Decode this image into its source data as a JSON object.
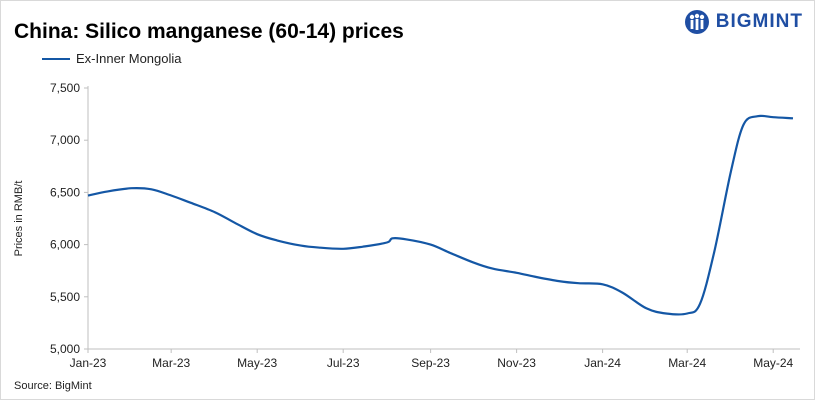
{
  "logo": {
    "text": "BIGMINT",
    "color": "#1f4ea3"
  },
  "source": "Source: BigMint",
  "chart_data": {
    "type": "line",
    "title": "China: Silico manganese (60-14) prices",
    "ylabel": "Prices in RMB/t",
    "xlabel": "",
    "ylim": [
      5000,
      7500
    ],
    "yticks": [
      5000,
      5500,
      6000,
      6500,
      7000,
      7500
    ],
    "ytick_labels": [
      "5,000",
      "5,500",
      "6,000",
      "6,500",
      "7,000",
      "7,500"
    ],
    "xticks": [
      "Jan-23",
      "Mar-23",
      "May-23",
      "Jul-23",
      "Sep-23",
      "Nov-23",
      "Jan-24",
      "Mar-24",
      "May-24"
    ],
    "grid": false,
    "legend_position": "top-left",
    "series": [
      {
        "name": "Ex-Inner Mongolia",
        "color": "#1457a5",
        "x": [
          "2023-01-01",
          "2023-01-15",
          "2023-02-01",
          "2023-02-15",
          "2023-03-01",
          "2023-03-15",
          "2023-04-01",
          "2023-04-15",
          "2023-05-01",
          "2023-05-15",
          "2023-06-01",
          "2023-06-15",
          "2023-07-01",
          "2023-07-15",
          "2023-08-01",
          "2023-08-05",
          "2023-08-15",
          "2023-09-01",
          "2023-09-15",
          "2023-10-01",
          "2023-10-15",
          "2023-11-01",
          "2023-11-15",
          "2023-12-01",
          "2023-12-15",
          "2024-01-01",
          "2024-01-15",
          "2024-02-01",
          "2024-02-15",
          "2024-03-01",
          "2024-03-10",
          "2024-03-20",
          "2024-04-01",
          "2024-04-10",
          "2024-04-20",
          "2024-05-01",
          "2024-05-15"
        ],
        "values": [
          6470,
          6510,
          6540,
          6530,
          6470,
          6400,
          6310,
          6210,
          6100,
          6040,
          5990,
          5970,
          5960,
          5980,
          6020,
          6060,
          6050,
          6000,
          5920,
          5830,
          5770,
          5730,
          5690,
          5650,
          5630,
          5620,
          5540,
          5390,
          5340,
          5340,
          5430,
          5920,
          6700,
          7150,
          7230,
          7220,
          7210
        ]
      }
    ]
  }
}
